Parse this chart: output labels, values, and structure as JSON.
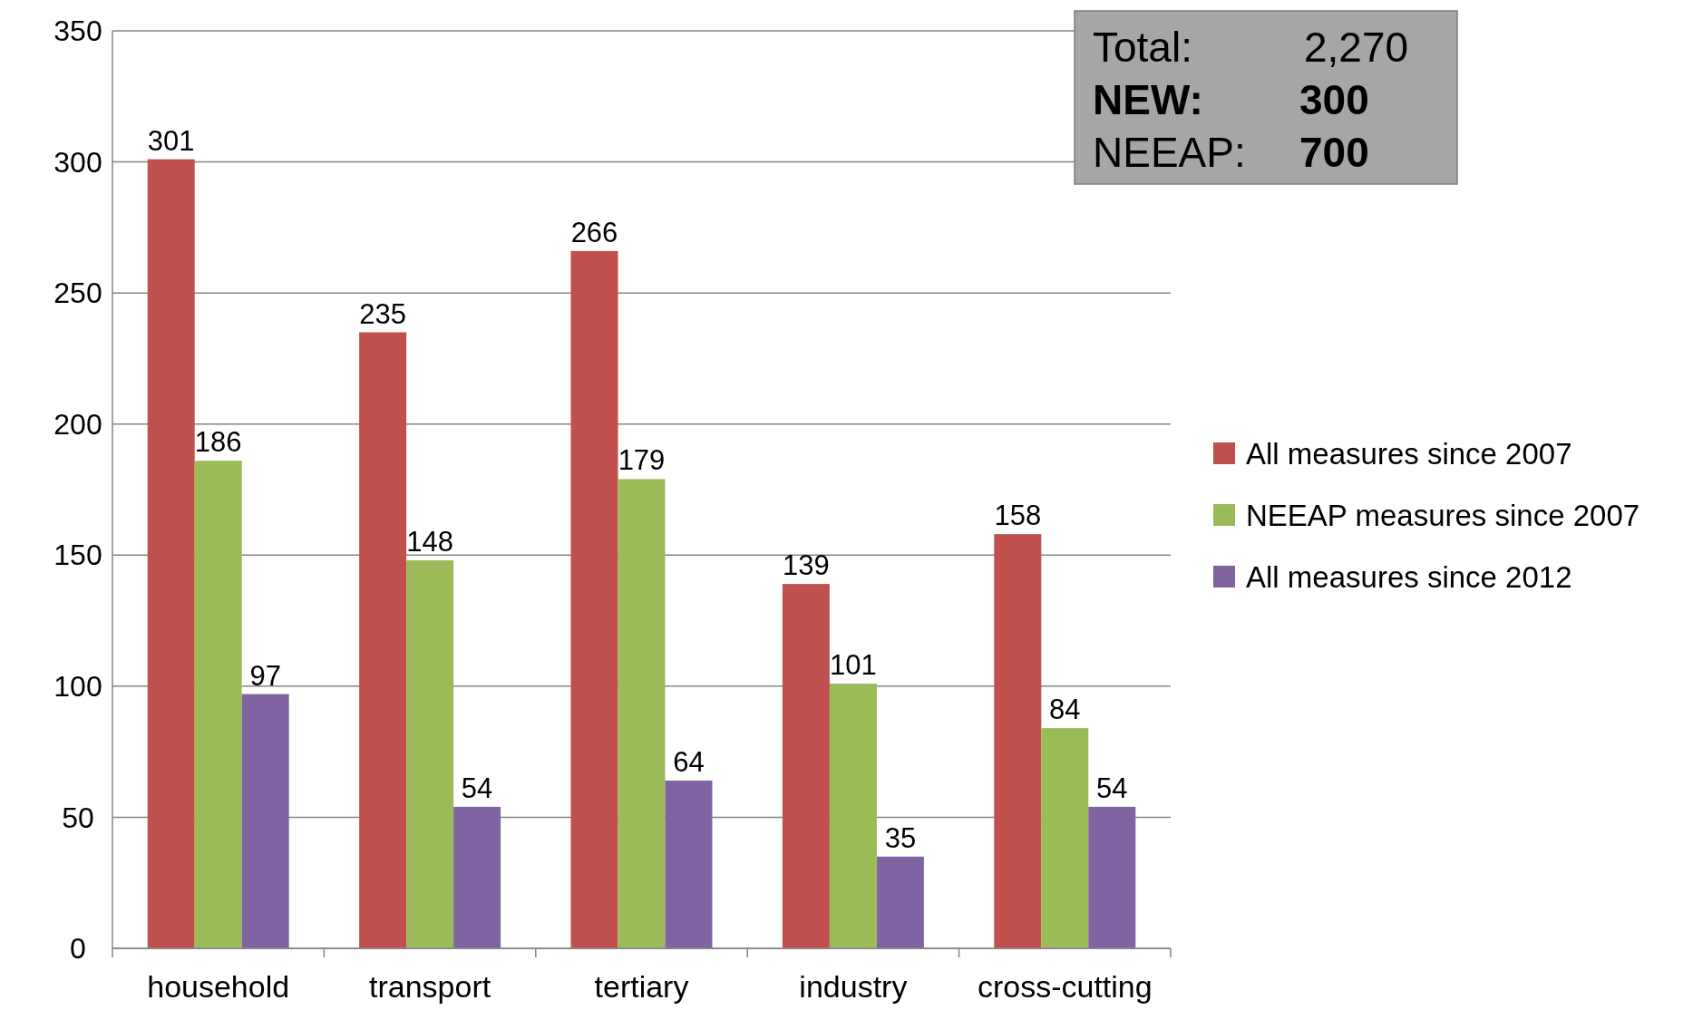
{
  "chart_data": {
    "type": "bar",
    "categories": [
      "household",
      "transport",
      "tertiary",
      "industry",
      "cross-cutting"
    ],
    "series": [
      {
        "name": "All measures since 2007",
        "color": "#c0504d",
        "values": [
          301,
          235,
          266,
          139,
          158
        ]
      },
      {
        "name": "NEEAP measures since 2007",
        "color": "#9bbb59",
        "values": [
          186,
          148,
          179,
          101,
          84
        ]
      },
      {
        "name": "All measures since 2012",
        "color": "#8064a2",
        "values": [
          97,
          54,
          64,
          35,
          54
        ]
      }
    ],
    "ylim": [
      0,
      350
    ],
    "yticks": [
      0,
      50,
      100,
      150,
      200,
      250,
      300,
      350
    ],
    "grid": "y",
    "legend": "right",
    "data_labels": true,
    "annotations": [
      "Total: 2,270",
      "NEW: 300",
      "NEEAP: 700"
    ]
  }
}
